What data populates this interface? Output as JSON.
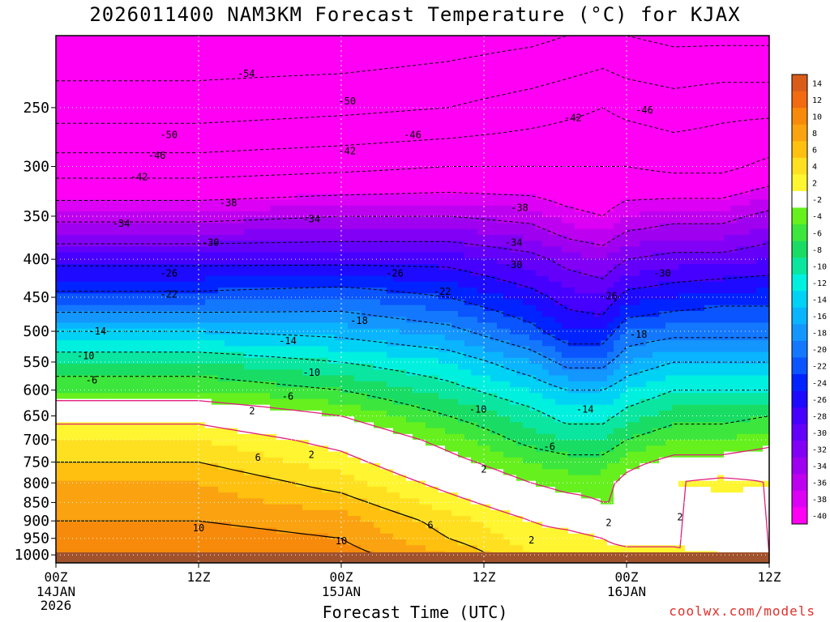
{
  "title": "2026011400 NAM3KM Forecast Temperature (°C) for KJAX",
  "credit": "coolwx.com/models",
  "chart_data": {
    "type": "heatmap",
    "title": "2026011400 NAM3KM Forecast Temperature (°C) for KJAX",
    "xlabel": "Forecast Time (UTC)",
    "ylabel": "",
    "x_ticks": [
      {
        "hour": 0,
        "label": "00Z",
        "sub": [
          "14JAN",
          "2026"
        ]
      },
      {
        "hour": 12,
        "label": "12Z",
        "sub": []
      },
      {
        "hour": 24,
        "label": "00Z",
        "sub": [
          "15JAN"
        ]
      },
      {
        "hour": 36,
        "label": "12Z",
        "sub": []
      },
      {
        "hour": 48,
        "label": "00Z",
        "sub": [
          "16JAN"
        ]
      },
      {
        "hour": 60,
        "label": "12Z",
        "sub": []
      }
    ],
    "xlim": [
      0,
      60
    ],
    "ylim": [
      1025,
      200
    ],
    "y_ticks": [
      250,
      300,
      350,
      400,
      450,
      500,
      550,
      600,
      650,
      700,
      750,
      800,
      850,
      900,
      950,
      1000
    ],
    "colorbar": {
      "levels": [
        14,
        12,
        10,
        8,
        6,
        4,
        2,
        -2,
        -4,
        -6,
        -8,
        -10,
        -12,
        -14,
        -16,
        -18,
        -20,
        -22,
        -24,
        -26,
        -28,
        -30,
        -32,
        -34,
        -36,
        -38,
        -40
      ],
      "colors": [
        "#d95c1a",
        "#f26b10",
        "#f78a0a",
        "#fba210",
        "#ffc010",
        "#ffe020",
        "#fff530",
        "#ffffff",
        "#66f01e",
        "#3ce63c",
        "#19dc64",
        "#0ae6a0",
        "#00f0e0",
        "#00d2f5",
        "#0ab4ff",
        "#1496ff",
        "#1478ff",
        "#0a55ff",
        "#0023ff",
        "#1e0aff",
        "#4600ff",
        "#6400fa",
        "#8200f5",
        "#a000f0",
        "#be00f0",
        "#dc00f5",
        "#ff00f5"
      ]
    },
    "profile_hours": [
      0,
      12,
      24,
      33,
      40,
      43,
      46,
      48,
      52,
      56,
      60
    ],
    "profile_pressures": [
      200,
      250,
      300,
      350,
      400,
      450,
      500,
      550,
      600,
      650,
      700,
      750,
      800,
      850,
      900,
      950,
      1000
    ],
    "temperatures": [
      [
        -57,
        -52,
        -44,
        -35,
        -27,
        -21,
        -14,
        -8,
        -4,
        1,
        4,
        6,
        8,
        9,
        10,
        11,
        12
      ],
      [
        -57,
        -52,
        -44,
        -35,
        -27,
        -21,
        -14,
        -8,
        -4,
        1,
        4,
        6,
        8,
        9,
        10,
        11,
        12
      ],
      [
        -57,
        -51,
        -43,
        -34,
        -27,
        -20,
        -15,
        -10,
        -6,
        -2,
        1,
        3,
        5,
        7,
        9,
        10,
        11
      ],
      [
        -56,
        -50,
        -42,
        -34,
        -27,
        -22,
        -17,
        -12,
        -9,
        -6,
        -3,
        -1,
        1,
        3,
        5,
        6,
        8
      ],
      [
        -55,
        -48,
        -42,
        -35,
        -29,
        -25,
        -21,
        -16,
        -12,
        -9,
        -7,
        -4,
        -2,
        0,
        2,
        3,
        4
      ],
      [
        -54,
        -47,
        -42,
        -37,
        -31,
        -27,
        -24,
        -19,
        -14,
        -11,
        -8,
        -5,
        -3,
        -1,
        1,
        3,
        4
      ],
      [
        -53,
        -46,
        -42,
        -38,
        -32,
        -28,
        -24,
        -19,
        -14,
        -11,
        -8,
        -5,
        -3,
        -2,
        0,
        2,
        3
      ],
      [
        -54,
        -47,
        -42,
        -36,
        -30,
        -25,
        -20,
        -16,
        -12,
        -9,
        -6,
        -3,
        -1,
        -2,
        -1,
        1,
        3
      ],
      [
        -55,
        -48,
        -43,
        -35,
        -29,
        -24,
        -19,
        -14,
        -10,
        -7,
        -4,
        -1,
        2,
        -1,
        -1,
        1,
        3
      ],
      [
        -55,
        -47,
        -43,
        -35,
        -29,
        -23,
        -19,
        -14,
        -10,
        -7,
        -4,
        -1,
        3,
        1,
        -1,
        0,
        2
      ],
      [
        -55,
        -47,
        -41,
        -33,
        -28,
        -23,
        -19,
        -14,
        -10,
        -6,
        -3,
        0,
        2,
        1,
        -1,
        0,
        2
      ]
    ],
    "contour_labels": [
      {
        "hour": 16,
        "p": 225,
        "text": "-54"
      },
      {
        "hour": 24.5,
        "p": 245,
        "text": "-50"
      },
      {
        "hour": 9.5,
        "p": 272,
        "text": "-50"
      },
      {
        "hour": 30,
        "p": 272,
        "text": "-46"
      },
      {
        "hour": 8.5,
        "p": 290,
        "text": "-46"
      },
      {
        "hour": 24.5,
        "p": 286,
        "text": "-42"
      },
      {
        "hour": 7,
        "p": 310,
        "text": "-42"
      },
      {
        "hour": 43.5,
        "p": 258,
        "text": "-42"
      },
      {
        "hour": 49.5,
        "p": 252,
        "text": "-46"
      },
      {
        "hour": 14.5,
        "p": 336,
        "text": "-38"
      },
      {
        "hour": 39,
        "p": 341,
        "text": "-38"
      },
      {
        "hour": 5.5,
        "p": 358,
        "text": "-34"
      },
      {
        "hour": 21.5,
        "p": 353,
        "text": "-34"
      },
      {
        "hour": 38.5,
        "p": 380,
        "text": "-34"
      },
      {
        "hour": 13,
        "p": 380,
        "text": "-30"
      },
      {
        "hour": 38.5,
        "p": 407,
        "text": "-30"
      },
      {
        "hour": 51,
        "p": 418,
        "text": "-30"
      },
      {
        "hour": 9.5,
        "p": 418,
        "text": "-26"
      },
      {
        "hour": 28.5,
        "p": 418,
        "text": "-26"
      },
      {
        "hour": 46.5,
        "p": 448,
        "text": "-26"
      },
      {
        "hour": 9.5,
        "p": 446,
        "text": "-22"
      },
      {
        "hour": 32.5,
        "p": 442,
        "text": "-22"
      },
      {
        "hour": 25.5,
        "p": 484,
        "text": "-18"
      },
      {
        "hour": 49,
        "p": 505,
        "text": "-18"
      },
      {
        "hour": 3.5,
        "p": 500,
        "text": "-14"
      },
      {
        "hour": 19.5,
        "p": 515,
        "text": "-14"
      },
      {
        "hour": 44.5,
        "p": 637,
        "text": "-14"
      },
      {
        "hour": 2.5,
        "p": 540,
        "text": "-10"
      },
      {
        "hour": 21.5,
        "p": 568,
        "text": "-10"
      },
      {
        "hour": 35.5,
        "p": 637,
        "text": "-10"
      },
      {
        "hour": 3,
        "p": 582,
        "text": "-6"
      },
      {
        "hour": 19.5,
        "p": 612,
        "text": "-6"
      },
      {
        "hour": 41.5,
        "p": 715,
        "text": "-6"
      },
      {
        "hour": 16.5,
        "p": 640,
        "text": "2"
      },
      {
        "hour": 21.5,
        "p": 733,
        "text": "2"
      },
      {
        "hour": 36,
        "p": 767,
        "text": "2"
      },
      {
        "hour": 46.5,
        "p": 905,
        "text": "2"
      },
      {
        "hour": 52.5,
        "p": 890,
        "text": "2"
      },
      {
        "hour": 40,
        "p": 955,
        "text": "2"
      },
      {
        "hour": 17,
        "p": 740,
        "text": "6"
      },
      {
        "hour": 31.5,
        "p": 912,
        "text": "6"
      },
      {
        "hour": 12,
        "p": 920,
        "text": "10"
      },
      {
        "hour": 24,
        "p": 958,
        "text": "10"
      }
    ]
  }
}
